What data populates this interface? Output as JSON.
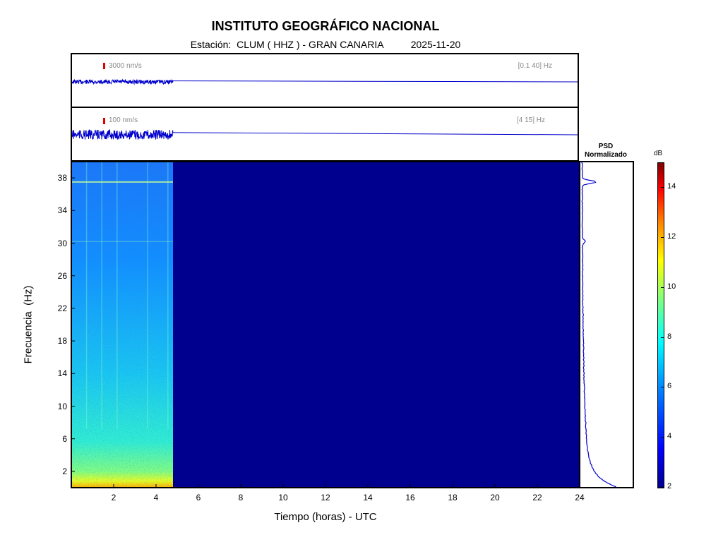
{
  "chart_data": {
    "type": "heatmap",
    "title": "INSTITUTO GEOGRÁFICO NACIONAL",
    "station_label": "Estación:",
    "station": "CLUM ( HHZ ) - GRAN CANARIA",
    "date": "2025-11-20",
    "traces": [
      {
        "scale_label": "3000 nm/s",
        "band_label": "[0.1 40] Hz",
        "data_end_hour": 4.8
      },
      {
        "scale_label": "100 nm/s",
        "band_label": "[4 15] Hz",
        "data_end_hour": 4.8
      }
    ],
    "spectrogram": {
      "xlabel": "Tiempo (horas) - UTC",
      "ylabel": "Frecuencia  (Hz)",
      "xlim": [
        0,
        24
      ],
      "ylim": [
        0,
        40
      ],
      "xticks": [
        2,
        4,
        6,
        8,
        10,
        12,
        14,
        16,
        18,
        20,
        22,
        24
      ],
      "yticks": [
        2,
        6,
        10,
        14,
        18,
        22,
        26,
        30,
        34,
        38
      ],
      "data_end_hour": 4.8,
      "lines_hz": [
        37.5,
        30.2
      ]
    },
    "psd": {
      "title_line1": "PSD",
      "title_line2": "Normalizado",
      "peaks_hz": [
        37.5,
        30.2
      ]
    },
    "colorbar": {
      "unit": "dB",
      "ticks": [
        2,
        4,
        6,
        8,
        10,
        12,
        14
      ],
      "range": [
        2,
        15
      ]
    }
  }
}
